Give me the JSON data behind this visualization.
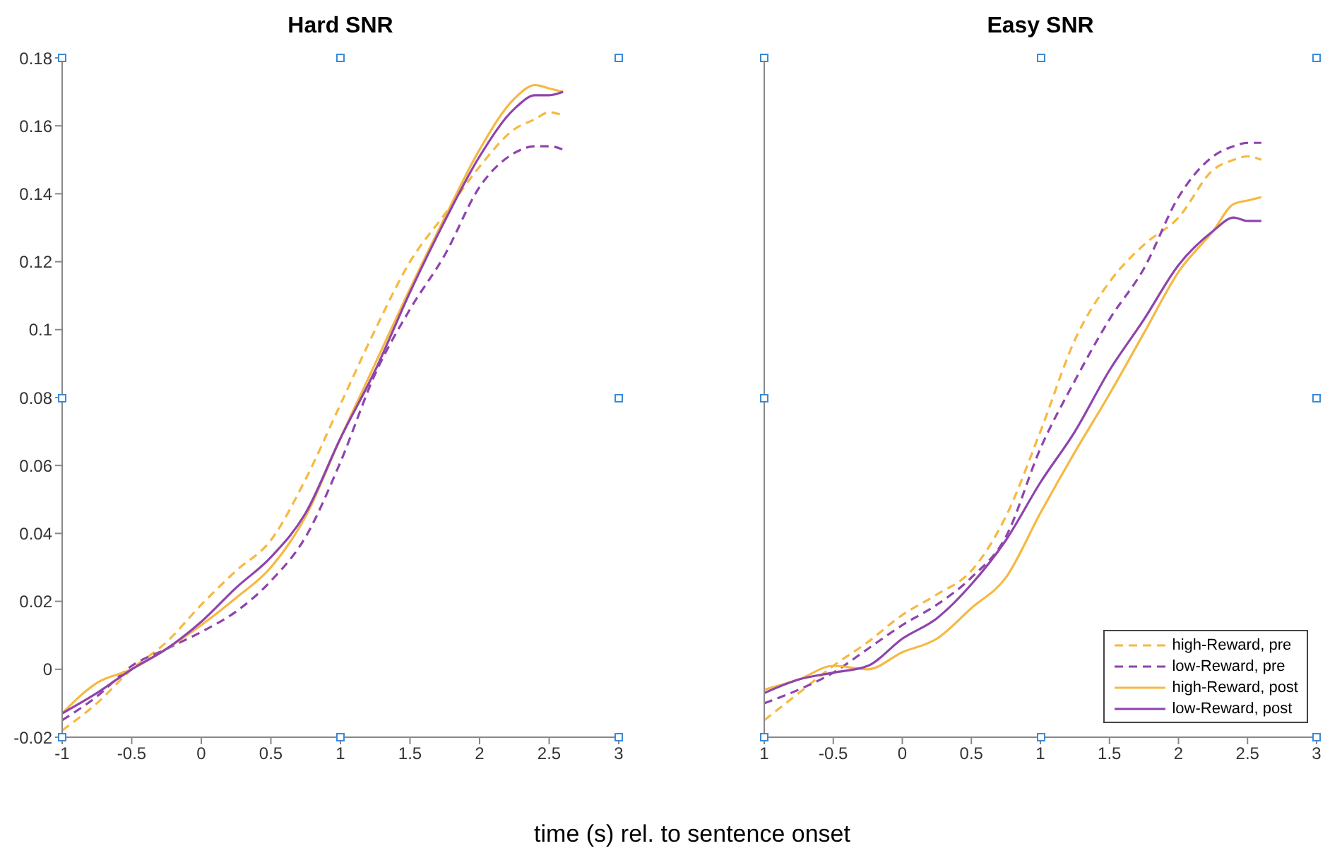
{
  "chart_data": [
    {
      "type": "line",
      "title": "Hard SNR",
      "xlabel": "time (s) rel. to sentence onset",
      "x": [
        -1,
        -0.75,
        -0.5,
        -0.25,
        0,
        0.25,
        0.5,
        0.75,
        1,
        1.25,
        1.5,
        1.75,
        2,
        2.25,
        2.4,
        2.5,
        2.6
      ],
      "xlim": [
        -1,
        3
      ],
      "xticks": [
        -1,
        -0.5,
        0,
        0.5,
        1,
        1.5,
        2,
        2.5,
        3
      ],
      "ylim": [
        -0.02,
        0.18
      ],
      "yticks": [
        -0.02,
        0,
        0.02,
        0.04,
        0.06,
        0.08,
        0.1,
        0.12,
        0.14,
        0.16,
        0.18
      ],
      "grid": false,
      "legend": false,
      "marker": "none",
      "series": [
        {
          "color": "#f5b942",
          "line_style": "dashed",
          "values": [
            -0.018,
            -0.01,
            0.0,
            0.008,
            0.019,
            0.029,
            0.038,
            0.056,
            0.078,
            0.1,
            0.12,
            0.134,
            0.148,
            0.159,
            0.162,
            0.164,
            0.163
          ]
        },
        {
          "color": "#8e44ad",
          "line_style": "dashed",
          "values": [
            -0.015,
            -0.008,
            0.001,
            0.006,
            0.011,
            0.017,
            0.026,
            0.039,
            0.061,
            0.087,
            0.106,
            0.122,
            0.142,
            0.152,
            0.154,
            0.154,
            0.153
          ]
        },
        {
          "color": "#f5b942",
          "line_style": "solid",
          "values": [
            -0.013,
            -0.004,
            0.0,
            0.006,
            0.013,
            0.021,
            0.03,
            0.045,
            0.068,
            0.09,
            0.112,
            0.133,
            0.153,
            0.168,
            0.172,
            0.171,
            0.17
          ]
        },
        {
          "color": "#8e44ad",
          "line_style": "solid",
          "values": [
            -0.013,
            -0.007,
            0.0,
            0.006,
            0.014,
            0.024,
            0.033,
            0.046,
            0.068,
            0.088,
            0.111,
            0.132,
            0.151,
            0.165,
            0.169,
            0.169,
            0.17
          ]
        }
      ]
    },
    {
      "type": "line",
      "title": "Easy SNR",
      "x": [
        -1,
        -0.75,
        -0.5,
        -0.25,
        0,
        0.25,
        0.5,
        0.75,
        1,
        1.25,
        1.5,
        1.75,
        2,
        2.25,
        2.4,
        2.5,
        2.6
      ],
      "xlim": [
        -1,
        3
      ],
      "xticks": [
        {
          "value": -1,
          "label": "1"
        },
        -0.5,
        0,
        0.5,
        1,
        1.5,
        2,
        2.5,
        3
      ],
      "ylim": [
        -0.02,
        0.18
      ],
      "yticks": [
        -0.02,
        0,
        0.02,
        0.04,
        0.06,
        0.08,
        0.1,
        0.12,
        0.14,
        0.16,
        0.18
      ],
      "tick_labels": "x",
      "grid": false,
      "legend": "bottom right",
      "marker": "none",
      "series": [
        {
          "name": "high-Reward, pre",
          "color": "#f5b942",
          "line_style": "dashed",
          "values": [
            -0.015,
            -0.007,
            0.001,
            0.008,
            0.016,
            0.022,
            0.029,
            0.045,
            0.07,
            0.097,
            0.114,
            0.125,
            0.133,
            0.147,
            0.15,
            0.151,
            0.15
          ]
        },
        {
          "name": "low-Reward, pre",
          "color": "#8e44ad",
          "line_style": "dashed",
          "values": [
            -0.01,
            -0.006,
            -0.001,
            0.006,
            0.013,
            0.019,
            0.027,
            0.039,
            0.065,
            0.085,
            0.103,
            0.118,
            0.139,
            0.151,
            0.154,
            0.155,
            0.155
          ]
        },
        {
          "name": "high-Reward, post",
          "color": "#f5b942",
          "line_style": "solid",
          "values": [
            -0.006,
            -0.003,
            0.001,
            0.0,
            0.005,
            0.009,
            0.018,
            0.027,
            0.046,
            0.064,
            0.081,
            0.099,
            0.117,
            0.129,
            0.137,
            0.138,
            0.139
          ]
        },
        {
          "name": "low-Reward, post",
          "color": "#8e44ad",
          "line_style": "solid",
          "values": [
            -0.007,
            -0.003,
            -0.001,
            0.001,
            0.009,
            0.015,
            0.025,
            0.038,
            0.055,
            0.07,
            0.088,
            0.103,
            0.119,
            0.129,
            0.133,
            0.132,
            0.132
          ]
        }
      ]
    }
  ]
}
